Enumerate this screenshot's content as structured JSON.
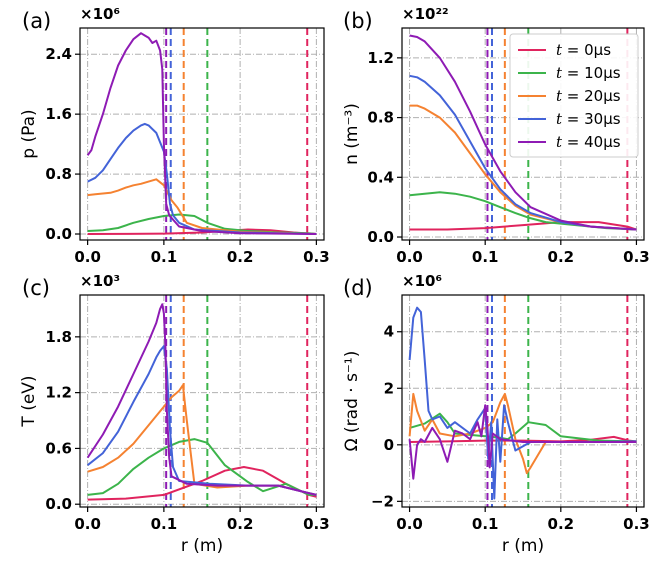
{
  "chart_data": [
    {
      "type": "line",
      "panel_label": "(a)",
      "multiplier": "×10⁶",
      "ylabel": "p (Pa)",
      "xlabel": "",
      "xlim": [
        -0.01,
        0.31
      ],
      "ylim": [
        -0.08,
        2.75
      ],
      "xticks": [
        0.0,
        0.1,
        0.2,
        0.3
      ],
      "xtick_labels": [
        "0.0",
        "0.1",
        "0.2",
        "0.3"
      ],
      "yticks": [
        0.0,
        0.8,
        1.6,
        2.4
      ],
      "ytick_labels": [
        "0.0",
        "0.8",
        "1.6",
        "2.4"
      ],
      "vlines": [
        {
          "x": 0.288,
          "series": "t0"
        },
        {
          "x": 0.157,
          "series": "t10"
        },
        {
          "x": 0.126,
          "series": "t20"
        },
        {
          "x": 0.109,
          "series": "t30"
        },
        {
          "x": 0.103,
          "series": "t40"
        }
      ],
      "series": [
        {
          "id": "t0",
          "x": [
            0,
            0.05,
            0.1,
            0.15,
            0.18,
            0.21,
            0.24,
            0.27,
            0.3
          ],
          "y": [
            0.0,
            0.002,
            0.006,
            0.02,
            0.04,
            0.06,
            0.05,
            0.02,
            0.0
          ]
        },
        {
          "id": "t10",
          "x": [
            0,
            0.02,
            0.04,
            0.06,
            0.08,
            0.1,
            0.12,
            0.14,
            0.157,
            0.18,
            0.21,
            0.25,
            0.29,
            0.3
          ],
          "y": [
            0.04,
            0.05,
            0.08,
            0.15,
            0.2,
            0.24,
            0.26,
            0.24,
            0.15,
            0.07,
            0.04,
            0.02,
            0.01,
            0.0
          ]
        },
        {
          "id": "t20",
          "x": [
            0,
            0.01,
            0.03,
            0.04,
            0.05,
            0.06,
            0.07,
            0.08,
            0.09,
            0.1,
            0.11,
            0.118,
            0.124,
            0.13,
            0.15,
            0.2,
            0.3
          ],
          "y": [
            0.52,
            0.53,
            0.55,
            0.58,
            0.62,
            0.65,
            0.67,
            0.7,
            0.73,
            0.65,
            0.45,
            0.35,
            0.25,
            0.15,
            0.08,
            0.03,
            0.0
          ]
        },
        {
          "id": "t30",
          "x": [
            0,
            0.01,
            0.02,
            0.03,
            0.04,
            0.05,
            0.06,
            0.07,
            0.075,
            0.08,
            0.09,
            0.1,
            0.104,
            0.108,
            0.112,
            0.12,
            0.14,
            0.2,
            0.3
          ],
          "y": [
            0.7,
            0.75,
            0.85,
            1.0,
            1.15,
            1.28,
            1.38,
            1.45,
            1.47,
            1.45,
            1.35,
            1.1,
            0.8,
            0.4,
            0.25,
            0.15,
            0.06,
            0.02,
            0.0
          ]
        },
        {
          "id": "t40",
          "x": [
            0,
            0.005,
            0.01,
            0.02,
            0.03,
            0.04,
            0.05,
            0.06,
            0.07,
            0.075,
            0.08,
            0.085,
            0.09,
            0.095,
            0.098,
            0.1,
            0.103,
            0.107,
            0.12,
            0.15,
            0.2,
            0.3
          ],
          "y": [
            1.05,
            1.12,
            1.3,
            1.6,
            1.95,
            2.25,
            2.45,
            2.6,
            2.68,
            2.65,
            2.62,
            2.55,
            2.58,
            2.45,
            2.2,
            1.2,
            0.4,
            0.25,
            0.1,
            0.04,
            0.01,
            0.0
          ]
        }
      ]
    },
    {
      "type": "line",
      "panel_label": "(b)",
      "multiplier": "×10²²",
      "ylabel": "n (m⁻³)",
      "xlabel": "",
      "xlim": [
        -0.01,
        0.31
      ],
      "ylim": [
        -0.02,
        1.4
      ],
      "xticks": [
        0.0,
        0.1,
        0.2,
        0.3
      ],
      "xtick_labels": [
        "0.0",
        "0.1",
        "0.2",
        "0.3"
      ],
      "yticks": [
        0.0,
        0.4,
        0.8,
        1.2
      ],
      "ytick_labels": [
        "0.0",
        "0.4",
        "0.8",
        "1.2"
      ],
      "legend_position": "top-right",
      "vlines": [
        {
          "x": 0.288,
          "series": "t0"
        },
        {
          "x": 0.157,
          "series": "t10"
        },
        {
          "x": 0.126,
          "series": "t20"
        },
        {
          "x": 0.109,
          "series": "t30"
        },
        {
          "x": 0.103,
          "series": "t40"
        }
      ],
      "series": [
        {
          "id": "t0",
          "x": [
            0,
            0.05,
            0.1,
            0.15,
            0.2,
            0.25,
            0.288,
            0.3
          ],
          "y": [
            0.05,
            0.05,
            0.06,
            0.08,
            0.1,
            0.1,
            0.07,
            0.05
          ]
        },
        {
          "id": "t10",
          "x": [
            0,
            0.02,
            0.04,
            0.06,
            0.08,
            0.1,
            0.12,
            0.14,
            0.157,
            0.18,
            0.22,
            0.26,
            0.3
          ],
          "y": [
            0.28,
            0.29,
            0.3,
            0.29,
            0.27,
            0.24,
            0.2,
            0.16,
            0.13,
            0.1,
            0.08,
            0.06,
            0.05
          ]
        },
        {
          "id": "t20",
          "x": [
            0,
            0.01,
            0.02,
            0.04,
            0.06,
            0.08,
            0.1,
            0.12,
            0.14,
            0.16,
            0.2,
            0.24,
            0.3
          ],
          "y": [
            0.88,
            0.88,
            0.86,
            0.8,
            0.7,
            0.56,
            0.42,
            0.3,
            0.21,
            0.15,
            0.1,
            0.07,
            0.05
          ]
        },
        {
          "id": "t30",
          "x": [
            0,
            0.01,
            0.02,
            0.04,
            0.06,
            0.08,
            0.1,
            0.12,
            0.14,
            0.16,
            0.2,
            0.24,
            0.3
          ],
          "y": [
            1.08,
            1.07,
            1.04,
            0.95,
            0.82,
            0.64,
            0.46,
            0.32,
            0.22,
            0.16,
            0.1,
            0.07,
            0.05
          ]
        },
        {
          "id": "t40",
          "x": [
            0,
            0.01,
            0.02,
            0.04,
            0.06,
            0.08,
            0.1,
            0.12,
            0.14,
            0.16,
            0.2,
            0.24,
            0.3
          ],
          "y": [
            1.35,
            1.34,
            1.31,
            1.2,
            1.04,
            0.84,
            0.62,
            0.44,
            0.3,
            0.2,
            0.11,
            0.07,
            0.05
          ]
        }
      ]
    },
    {
      "type": "line",
      "panel_label": "(c)",
      "multiplier": "×10³",
      "ylabel": "T (eV)",
      "xlabel": "r (m)",
      "xlim": [
        -0.01,
        0.31
      ],
      "ylim": [
        -0.03,
        2.25
      ],
      "xticks": [
        0.0,
        0.1,
        0.2,
        0.3
      ],
      "xtick_labels": [
        "0.0",
        "0.1",
        "0.2",
        "0.3"
      ],
      "yticks": [
        0.0,
        0.6,
        1.2,
        1.8
      ],
      "ytick_labels": [
        "0.0",
        "0.6",
        "1.2",
        "1.8"
      ],
      "vlines": [
        {
          "x": 0.288,
          "series": "t0"
        },
        {
          "x": 0.157,
          "series": "t10"
        },
        {
          "x": 0.126,
          "series": "t20"
        },
        {
          "x": 0.109,
          "series": "t30"
        },
        {
          "x": 0.103,
          "series": "t40"
        }
      ],
      "series": [
        {
          "id": "t0",
          "x": [
            0,
            0.05,
            0.1,
            0.15,
            0.18,
            0.205,
            0.23,
            0.26,
            0.29,
            0.3
          ],
          "y": [
            0.05,
            0.06,
            0.1,
            0.25,
            0.36,
            0.4,
            0.36,
            0.22,
            0.1,
            0.08
          ]
        },
        {
          "id": "t10",
          "x": [
            0,
            0.02,
            0.04,
            0.06,
            0.08,
            0.1,
            0.12,
            0.14,
            0.157,
            0.18,
            0.21,
            0.23,
            0.26,
            0.29,
            0.3
          ],
          "y": [
            0.1,
            0.12,
            0.22,
            0.38,
            0.5,
            0.6,
            0.67,
            0.7,
            0.66,
            0.42,
            0.24,
            0.14,
            0.22,
            0.1,
            0.1
          ]
        },
        {
          "id": "t20",
          "x": [
            0,
            0.02,
            0.04,
            0.06,
            0.08,
            0.1,
            0.11,
            0.12,
            0.125,
            0.13,
            0.14,
            0.17,
            0.21,
            0.25,
            0.29,
            0.3
          ],
          "y": [
            0.35,
            0.4,
            0.5,
            0.65,
            0.85,
            1.05,
            1.15,
            1.22,
            1.28,
            0.9,
            0.22,
            0.18,
            0.2,
            0.2,
            0.12,
            0.1
          ]
        },
        {
          "id": "t30",
          "x": [
            0,
            0.02,
            0.04,
            0.06,
            0.08,
            0.09,
            0.095,
            0.1,
            0.104,
            0.108,
            0.112,
            0.12,
            0.16,
            0.21,
            0.25,
            0.29,
            0.3
          ],
          "y": [
            0.42,
            0.55,
            0.78,
            1.1,
            1.4,
            1.58,
            1.65,
            1.7,
            1.45,
            0.8,
            0.4,
            0.25,
            0.22,
            0.2,
            0.2,
            0.12,
            0.1
          ]
        },
        {
          "id": "t40",
          "x": [
            0,
            0.02,
            0.04,
            0.06,
            0.08,
            0.09,
            0.095,
            0.098,
            0.1,
            0.102,
            0.104,
            0.107,
            0.11,
            0.13,
            0.17,
            0.21,
            0.25,
            0.29,
            0.3
          ],
          "y": [
            0.5,
            0.75,
            1.05,
            1.4,
            1.75,
            1.95,
            2.1,
            2.15,
            2.05,
            1.7,
            1.0,
            0.5,
            0.3,
            0.22,
            0.2,
            0.2,
            0.2,
            0.12,
            0.1
          ]
        }
      ]
    },
    {
      "type": "line",
      "panel_label": "(d)",
      "multiplier": "×10⁶",
      "ylabel": "Ω (rad · s⁻¹)",
      "xlabel": "r (m)",
      "xlim": [
        -0.01,
        0.31
      ],
      "ylim": [
        -2.2,
        5.3
      ],
      "xticks": [
        0.0,
        0.1,
        0.2,
        0.3
      ],
      "xtick_labels": [
        "0.0",
        "0.1",
        "0.2",
        "0.3"
      ],
      "yticks": [
        -2,
        0,
        2,
        4
      ],
      "ytick_labels": [
        "−2",
        "0",
        "2",
        "4"
      ],
      "vlines": [
        {
          "x": 0.288,
          "series": "t0"
        },
        {
          "x": 0.157,
          "series": "t10"
        },
        {
          "x": 0.126,
          "series": "t20"
        },
        {
          "x": 0.109,
          "series": "t30"
        },
        {
          "x": 0.103,
          "series": "t40"
        }
      ],
      "series": [
        {
          "id": "t0",
          "x": [
            0,
            0.05,
            0.1,
            0.15,
            0.2,
            0.24,
            0.27,
            0.29,
            0.3
          ],
          "y": [
            0.1,
            0.12,
            0.15,
            0.15,
            0.12,
            0.18,
            0.28,
            0.15,
            0.12
          ]
        },
        {
          "id": "t10",
          "x": [
            0,
            0.02,
            0.04,
            0.05,
            0.06,
            0.08,
            0.1,
            0.12,
            0.13,
            0.14,
            0.157,
            0.18,
            0.2,
            0.25,
            0.3
          ],
          "y": [
            0.6,
            0.75,
            1.1,
            0.8,
            0.4,
            0.35,
            0.3,
            0.25,
            0.2,
            0.4,
            0.8,
            0.7,
            0.3,
            0.15,
            0.12
          ]
        },
        {
          "id": "t20",
          "x": [
            0,
            0.005,
            0.01,
            0.02,
            0.03,
            0.04,
            0.06,
            0.08,
            0.1,
            0.11,
            0.12,
            0.126,
            0.13,
            0.14,
            0.15,
            0.155,
            0.16,
            0.18,
            0.22,
            0.26,
            0.3
          ],
          "y": [
            0.3,
            1.8,
            1.2,
            0.5,
            0.9,
            0.4,
            0.3,
            0.4,
            0.6,
            0.8,
            1.5,
            1.8,
            1.4,
            0.2,
            -0.5,
            -1.0,
            -0.8,
            0.1,
            0.1,
            0.1,
            0.1
          ]
        },
        {
          "id": "t30",
          "x": [
            0,
            0.005,
            0.01,
            0.015,
            0.02,
            0.025,
            0.03,
            0.04,
            0.05,
            0.06,
            0.08,
            0.09,
            0.1,
            0.104,
            0.108,
            0.112,
            0.116,
            0.12,
            0.125,
            0.13,
            0.14,
            0.16,
            0.2,
            0.25,
            0.3
          ],
          "y": [
            3.0,
            4.5,
            4.85,
            4.7,
            3.0,
            1.2,
            0.9,
            1.0,
            0.6,
            0.8,
            0.4,
            0.9,
            1.3,
            -0.5,
            0.8,
            -1.9,
            0.9,
            -0.6,
            1.4,
            0.8,
            -0.2,
            0.1,
            0.1,
            0.1,
            0.12
          ]
        },
        {
          "id": "t40",
          "x": [
            0,
            0.005,
            0.01,
            0.015,
            0.02,
            0.03,
            0.04,
            0.05,
            0.06,
            0.07,
            0.08,
            0.09,
            0.095,
            0.1,
            0.103,
            0.106,
            0.11,
            0.12,
            0.15,
            0.2,
            0.3
          ],
          "y": [
            0.2,
            -1.2,
            0.0,
            0.2,
            0.1,
            0.6,
            0.2,
            -0.6,
            0.5,
            0.4,
            0.2,
            0.8,
            0.3,
            1.4,
            0.6,
            -0.8,
            0.4,
            0.2,
            0.1,
            0.1,
            0.1
          ]
        }
      ]
    }
  ],
  "legend": {
    "entries": [
      {
        "id": "t0",
        "prefix": "t",
        "eq": " = ",
        "value": "0μs"
      },
      {
        "id": "t10",
        "prefix": "t",
        "eq": " = ",
        "value": "10μs"
      },
      {
        "id": "t20",
        "prefix": "t",
        "eq": " = ",
        "value": "20μs"
      },
      {
        "id": "t30",
        "prefix": "t",
        "eq": " = ",
        "value": "30μs"
      },
      {
        "id": "t40",
        "prefix": "t",
        "eq": " = ",
        "value": "40μs"
      }
    ]
  },
  "colors": {
    "t0": "#e0245e",
    "t10": "#3cb44b",
    "t20": "#f58231",
    "t30": "#4363d8",
    "t40": "#8e1bb4",
    "grid": "#b0b0b0"
  }
}
